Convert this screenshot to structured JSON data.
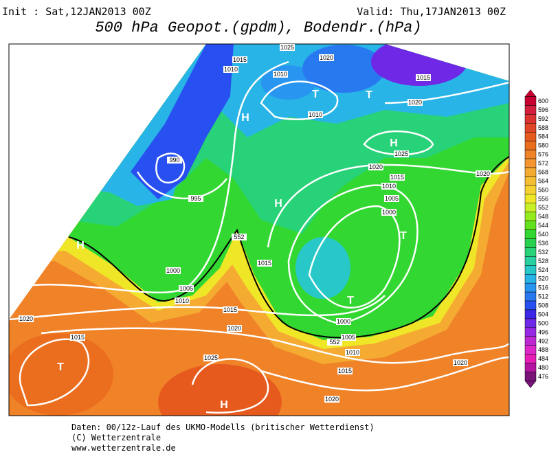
{
  "header": {
    "init": "Init : Sat,12JAN2013 00Z",
    "valid": "Valid: Thu,17JAN2013 00Z",
    "title": "500 hPa Geopot.(gpdm), Bodendr.(hPa)"
  },
  "colorbar": {
    "ticks": [
      600,
      596,
      592,
      588,
      584,
      580,
      576,
      572,
      568,
      564,
      560,
      556,
      552,
      548,
      544,
      540,
      536,
      532,
      528,
      524,
      520,
      516,
      512,
      508,
      504,
      500,
      496,
      492,
      488,
      484,
      480,
      476
    ],
    "colors": [
      "#c80032",
      "#d21e3c",
      "#dc3232",
      "#e14628",
      "#e65a1e",
      "#eb6e1e",
      "#f08228",
      "#f59632",
      "#f5aa32",
      "#f5be32",
      "#f5d232",
      "#f0e628",
      "#c8f028",
      "#96eb1e",
      "#64e11e",
      "#32d732",
      "#28d250",
      "#28d278",
      "#28d2a0",
      "#28c8c8",
      "#28b4e6",
      "#2896f0",
      "#2878f0",
      "#2850f0",
      "#3c28e6",
      "#6e28e6",
      "#9628e6",
      "#be28d2",
      "#dc28c8",
      "#e61eb4",
      "#b414a0",
      "#781478"
    ]
  },
  "map": {
    "isobar_labels": [
      1025,
      1020,
      1015,
      1010,
      1010,
      1015,
      1020,
      1010,
      1025,
      1020,
      1020,
      1015,
      1010,
      1005,
      1000,
      990,
      995,
      1000,
      1005,
      1010,
      1015,
      1020,
      1020,
      1015,
      1025,
      1005,
      1010,
      1000,
      1015,
      1020,
      1020,
      1015,
      552,
      552
    ],
    "pressure_centers": [
      "H",
      "T",
      "T",
      "H",
      "H",
      "T",
      "H",
      "T",
      "T",
      "H"
    ]
  },
  "footer": {
    "line1": "Daten: 00/12z-Lauf des UKMO-Modells (britischer Wetterdienst)",
    "line2": "(C) Wetterzentrale",
    "line3": "www.wetterzentrale.de"
  }
}
